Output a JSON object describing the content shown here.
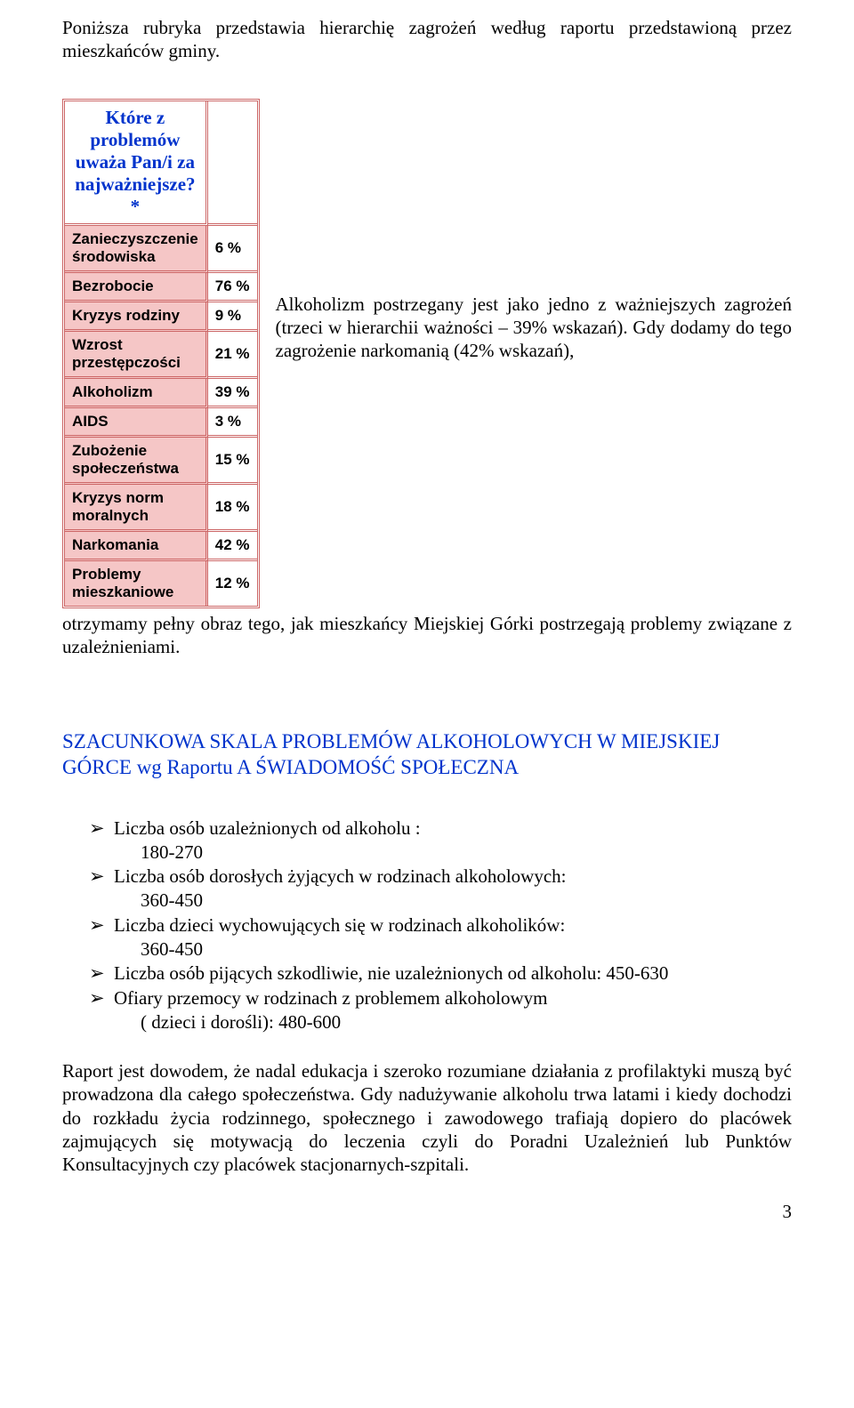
{
  "intro_text": "Poniższa rubryka przedstawia hierarchię zagrożeń według raportu przedstawioną przez mieszkańców gminy.",
  "table": {
    "header_title": "Które z problemów uważa Pan/i za najważniejsze?*",
    "label_bg": "#f5c6c6",
    "border_color": "#cc6666",
    "header_color": "#0033cc",
    "rows": [
      {
        "label": "Zanieczyszczenie środowiska",
        "value": "6 %"
      },
      {
        "label": "Bezrobocie",
        "value": "76 %"
      },
      {
        "label": "Kryzys rodziny",
        "value": "9 %"
      },
      {
        "label": "Wzrost przestępczości",
        "value": "21 %"
      },
      {
        "label": "Alkoholizm",
        "value": "39 %"
      },
      {
        "label": "AIDS",
        "value": "3 %"
      },
      {
        "label": "Zubożenie społeczeństwa",
        "value": "15 %"
      },
      {
        "label": "Kryzys norm moralnych",
        "value": "18 %"
      },
      {
        "label": "Narkomania",
        "value": "42 %"
      },
      {
        "label": "Problemy mieszkaniowe",
        "value": "12 %"
      }
    ]
  },
  "side_text": "Alkoholizm postrzegany jest jako jedno z ważniejszych zagrożeń (trzeci w hierarchii ważności – 39% wskazań). Gdy dodamy do tego zagrożenie narkomanią (42% wskazań),",
  "body_continuation": "otrzymamy pełny obraz tego, jak mieszkańcy Miejskiej Górki postrzegają problemy związane z uzależnieniami.",
  "section_heading": "SZACUNKOWA   SKALA PROBLEMÓW ALKOHOLOWYCH W MIEJSKIEJ GÓRCE wg Raportu A ŚWIADOMOŚĆ SPOŁECZNA",
  "heading_color": "#0033cc",
  "bullets": [
    {
      "main": "Liczba osób uzależnionych od alkoholu :",
      "sub": "180-270"
    },
    {
      "main": "Liczba osób dorosłych żyjących w rodzinach alkoholowych:",
      "sub": "360-450"
    },
    {
      "main": "Liczba dzieci wychowujących się w rodzinach alkoholików:",
      "sub": "360-450"
    },
    {
      "main": "Liczba osób pijących szkodliwie, nie uzależnionych od alkoholu: 450-630",
      "sub": null
    },
    {
      "main": "Ofiary przemocy w rodzinach z problemem alkoholowym",
      "sub": "( dzieci i dorośli): 480-600"
    }
  ],
  "arrow_glyph": "➢",
  "closing_text": "Raport jest dowodem, że nadal edukacja i szeroko rozumiane działania z profilaktyki muszą być prowadzona dla całego społeczeństwa. Gdy nadużywanie alkoholu trwa latami i kiedy dochodzi do rozkładu życia rodzinnego, społecznego i zawodowego trafiają dopiero do placówek zajmujących się  motywacją do leczenia czyli do Poradni Uzależnień lub Punktów Konsultacyjnych czy placówek stacjonarnych-szpitali.",
  "page_number": "3"
}
